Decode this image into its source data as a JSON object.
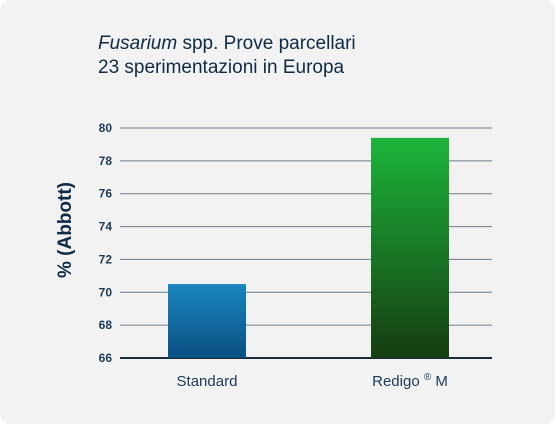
{
  "chart_data": {
    "type": "bar",
    "title_italic": "Fusarium",
    "title_rest": " spp. Prove parcellari",
    "subtitle": "23 sperimentazioni in Europa",
    "ylabel": "% (Abbott)",
    "xlabel": "",
    "ylim": [
      66,
      80
    ],
    "yticks": [
      66,
      68,
      70,
      72,
      74,
      76,
      78,
      80
    ],
    "grid": true,
    "categories": [
      "Standard",
      "Redigo ® M"
    ],
    "values": [
      70.5,
      79.4
    ],
    "colors": {
      "standard_top": "#1a86c0",
      "standard_bottom": "#0a4f82",
      "redigo_top": "#1cb53a",
      "redigo_bottom": "#163d12",
      "grid": "#6d7b8a",
      "axis": "#1b2b3a"
    }
  }
}
